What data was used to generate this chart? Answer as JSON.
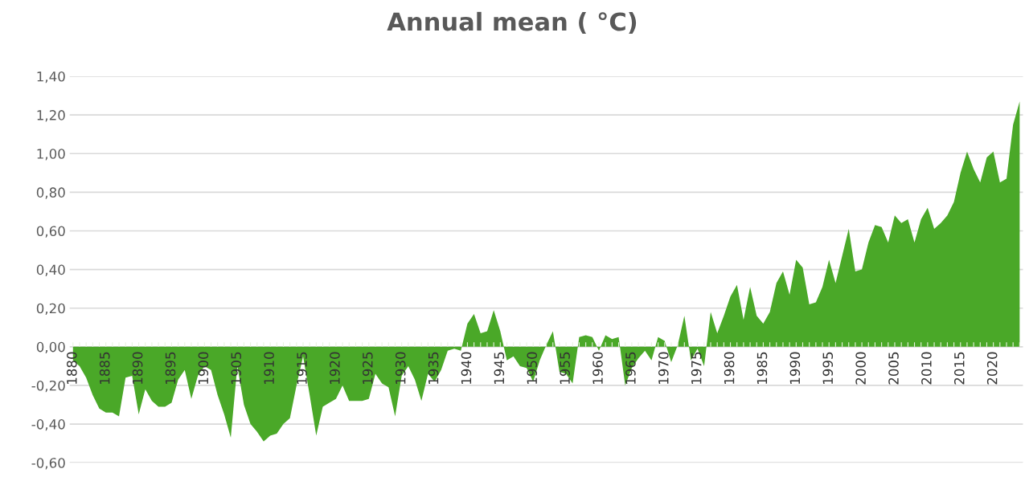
{
  "chart_data": {
    "type": "area",
    "title": "Annual mean ( °C)",
    "categories": [
      "1880",
      null,
      null,
      null,
      null,
      "1885",
      null,
      null,
      null,
      null,
      "1890",
      null,
      null,
      null,
      null,
      "1895",
      null,
      null,
      null,
      null,
      "1900",
      null,
      null,
      null,
      null,
      "1905",
      null,
      null,
      null,
      null,
      "1910",
      null,
      null,
      null,
      null,
      "1915",
      null,
      null,
      null,
      null,
      "1920",
      null,
      null,
      null,
      null,
      "1925",
      null,
      null,
      null,
      null,
      "1930",
      null,
      null,
      null,
      null,
      "1935",
      null,
      null,
      null,
      null,
      "1940",
      null,
      null,
      null,
      null,
      "1945",
      null,
      null,
      null,
      null,
      "1950",
      null,
      null,
      null,
      null,
      "1955",
      null,
      null,
      null,
      null,
      "1960",
      null,
      null,
      null,
      null,
      "1965",
      null,
      null,
      null,
      null,
      "1970",
      null,
      null,
      null,
      null,
      "1975",
      null,
      null,
      null,
      null,
      "1980",
      null,
      null,
      null,
      null,
      "1985",
      null,
      null,
      null,
      null,
      "1990",
      null,
      null,
      null,
      null,
      "1995",
      null,
      null,
      null,
      null,
      "2000",
      null,
      null,
      null,
      null,
      "2005",
      null,
      null,
      null,
      null,
      "2010",
      null,
      null,
      null,
      null,
      "2015",
      null,
      null,
      null,
      null,
      "2020",
      null,
      null,
      null,
      null
    ],
    "series": [
      {
        "color": "#4aa828",
        "values": [
          -0.07,
          -0.1,
          -0.16,
          -0.25,
          -0.32,
          -0.34,
          -0.34,
          -0.36,
          -0.16,
          -0.15,
          -0.35,
          -0.22,
          -0.28,
          -0.31,
          -0.31,
          -0.29,
          -0.17,
          -0.12,
          -0.27,
          -0.15,
          -0.1,
          -0.12,
          -0.25,
          -0.35,
          -0.47,
          -0.1,
          -0.3,
          -0.4,
          -0.44,
          -0.49,
          -0.46,
          -0.45,
          -0.4,
          -0.37,
          -0.2,
          -0.05,
          -0.25,
          -0.46,
          -0.31,
          -0.29,
          -0.27,
          -0.2,
          -0.28,
          -0.28,
          -0.28,
          -0.27,
          -0.14,
          -0.19,
          -0.21,
          -0.36,
          -0.15,
          -0.1,
          -0.17,
          -0.28,
          -0.14,
          -0.18,
          -0.12,
          -0.02,
          -0.01,
          -0.02,
          0.12,
          0.17,
          0.07,
          0.08,
          0.19,
          0.08,
          -0.07,
          -0.05,
          -0.1,
          -0.11,
          -0.18,
          -0.07,
          0.01,
          0.08,
          -0.13,
          -0.14,
          -0.19,
          0.05,
          0.06,
          0.05,
          -0.02,
          0.06,
          0.04,
          0.05,
          -0.2,
          -0.11,
          -0.06,
          -0.02,
          -0.07,
          0.05,
          0.03,
          -0.08,
          0.01,
          0.16,
          -0.07,
          -0.01,
          -0.1,
          0.18,
          0.07,
          0.16,
          0.26,
          0.32,
          0.14,
          0.31,
          0.16,
          0.12,
          0.18,
          0.33,
          0.39,
          0.27,
          0.45,
          0.41,
          0.22,
          0.23,
          0.31,
          0.45,
          0.33,
          0.47,
          0.61,
          0.39,
          0.4,
          0.54,
          0.63,
          0.62,
          0.54,
          0.68,
          0.64,
          0.66,
          0.54,
          0.66,
          0.72,
          0.61,
          0.64,
          0.68,
          0.75,
          0.9,
          1.01,
          0.92,
          0.85,
          0.98,
          1.01,
          0.85,
          0.87,
          1.15,
          1.27
        ]
      }
    ],
    "ylim": [
      -0.6,
      1.4
    ],
    "yticks": [
      {
        "value": -0.6,
        "label": "-0,60"
      },
      {
        "value": -0.4,
        "label": "-0,40"
      },
      {
        "value": -0.2,
        "label": "-0,20"
      },
      {
        "value": 0,
        "label": "0,00"
      },
      {
        "value": 0.2,
        "label": "0,20"
      },
      {
        "value": 0.4,
        "label": "0,40"
      },
      {
        "value": 0.6,
        "label": "0,60"
      },
      {
        "value": 0.8,
        "label": "0,80"
      },
      {
        "value": 1.0,
        "label": "1,00"
      },
      {
        "value": 1.2,
        "label": "1,20"
      },
      {
        "value": 1.4,
        "label": "1,40"
      }
    ],
    "grid": "y"
  }
}
